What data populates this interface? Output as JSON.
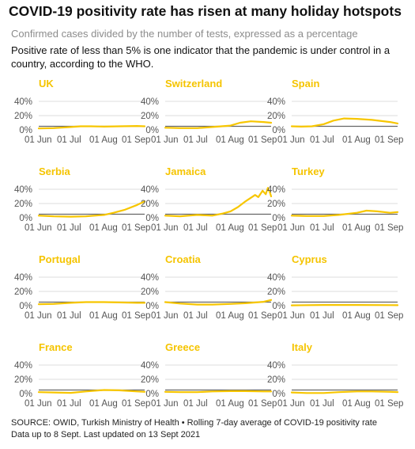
{
  "header": {
    "title": "COVID-19 positivity rate has risen at many holiday hotspots",
    "subtitle": "Confirmed cases divided by the number of tests, expressed as a percentage",
    "description": "Positive rate of less than 5% is one indicator that the pandemic is under control in a country, according to the WHO."
  },
  "footer": {
    "source": "SOURCE: OWID, Turkish Ministry of Health • Rolling 7-day average of COVID-19 positivity rate",
    "updated": "Data up to 8 Sept. Last updated on 13 Sept 2021"
  },
  "colors": {
    "series": "#f7c600",
    "threshold": "#666666",
    "grid": "#dddddd",
    "axis_text": "#555555",
    "country_label": "#f5c400"
  },
  "chart_data": [
    {
      "type": "line",
      "title": "UK",
      "x_ticks": [
        "01 Jun",
        "01 Jul",
        "01 Aug",
        "01 Sep"
      ],
      "y_ticks": [
        "0%",
        "20%",
        "40%"
      ],
      "ylim": [
        0,
        40
      ],
      "threshold": 5,
      "series": [
        {
          "x": [
            "2021-06-01",
            "2021-06-15",
            "2021-07-01",
            "2021-07-10",
            "2021-07-20",
            "2021-08-01",
            "2021-08-15",
            "2021-09-01",
            "2021-09-08"
          ],
          "y": [
            2,
            2.5,
            4,
            5,
            5,
            4.5,
            5,
            5.5,
            5
          ]
        }
      ]
    },
    {
      "type": "line",
      "title": "Switzerland",
      "x_ticks": [
        "01 Jun",
        "01 Jul",
        "01 Aug",
        "01 Sep"
      ],
      "y_ticks": [
        "0%",
        "20%",
        "40%"
      ],
      "ylim": [
        0,
        40
      ],
      "threshold": 5,
      "series": [
        {
          "x": [
            "2021-06-01",
            "2021-06-15",
            "2021-07-01",
            "2021-07-15",
            "2021-08-01",
            "2021-08-10",
            "2021-08-20",
            "2021-09-01",
            "2021-09-08"
          ],
          "y": [
            3,
            2.5,
            2.5,
            4,
            6,
            10,
            12,
            11,
            10
          ]
        }
      ]
    },
    {
      "type": "line",
      "title": "Spain",
      "x_ticks": [
        "01 Jun",
        "01 Jul",
        "01 Aug",
        "01 Sep"
      ],
      "y_ticks": [
        "0%",
        "20%",
        "40%"
      ],
      "ylim": [
        0,
        40
      ],
      "threshold": 5,
      "series": [
        {
          "x": [
            "2021-06-01",
            "2021-06-10",
            "2021-06-20",
            "2021-07-01",
            "2021-07-10",
            "2021-07-20",
            "2021-08-01",
            "2021-08-15",
            "2021-09-01",
            "2021-09-08"
          ],
          "y": [
            5,
            4.5,
            5,
            8,
            13,
            16,
            15.5,
            14,
            11,
            9
          ]
        }
      ]
    },
    {
      "type": "line",
      "title": "Serbia",
      "x_ticks": [
        "01 Jun",
        "01 Jul",
        "01 Aug",
        "01 Sep"
      ],
      "y_ticks": [
        "0%",
        "20%",
        "40%"
      ],
      "ylim": [
        0,
        40
      ],
      "threshold": 5,
      "series": [
        {
          "x": [
            "2021-06-01",
            "2021-06-15",
            "2021-07-01",
            "2021-07-15",
            "2021-08-01",
            "2021-08-10",
            "2021-08-20",
            "2021-09-01",
            "2021-09-08"
          ],
          "y": [
            3,
            2,
            1.5,
            2,
            4,
            7,
            11,
            18,
            23
          ]
        }
      ]
    },
    {
      "type": "line",
      "title": "Jamaica",
      "x_ticks": [
        "01 Jun",
        "01 Jul",
        "01 Aug",
        "01 Sep"
      ],
      "y_ticks": [
        "0%",
        "20%",
        "40%"
      ],
      "ylim": [
        0,
        40
      ],
      "threshold": 5,
      "series": [
        {
          "x": [
            "2021-06-01",
            "2021-06-15",
            "2021-07-01",
            "2021-07-15",
            "2021-07-25",
            "2021-08-01",
            "2021-08-08",
            "2021-08-15",
            "2021-08-20",
            "2021-08-24",
            "2021-08-27",
            "2021-08-31",
            "2021-09-03",
            "2021-09-05",
            "2021-09-07",
            "2021-09-08"
          ],
          "y": [
            3,
            2,
            4,
            3,
            6,
            9,
            15,
            23,
            28,
            32,
            29,
            38,
            33,
            42,
            35,
            30
          ]
        }
      ]
    },
    {
      "type": "line",
      "title": "Turkey",
      "x_ticks": [
        "01 Jun",
        "01 Jul",
        "01 Aug",
        "01 Sep"
      ],
      "y_ticks": [
        "0%",
        "20%",
        "40%"
      ],
      "ylim": [
        0,
        40
      ],
      "threshold": 5,
      "series": [
        {
          "x": [
            "2021-06-01",
            "2021-06-15",
            "2021-07-01",
            "2021-07-15",
            "2021-08-01",
            "2021-08-10",
            "2021-08-20",
            "2021-09-01",
            "2021-09-08"
          ],
          "y": [
            3,
            2.5,
            2.5,
            4,
            7,
            10,
            9,
            7,
            8
          ]
        }
      ]
    },
    {
      "type": "line",
      "title": "Portugal",
      "x_ticks": [
        "01 Jun",
        "01 Jul",
        "01 Aug",
        "01 Sep"
      ],
      "y_ticks": [
        "0%",
        "20%",
        "40%"
      ],
      "ylim": [
        0,
        40
      ],
      "threshold": 5,
      "series": [
        {
          "x": [
            "2021-06-01",
            "2021-06-15",
            "2021-07-01",
            "2021-07-15",
            "2021-08-01",
            "2021-08-15",
            "2021-09-01",
            "2021-09-08"
          ],
          "y": [
            2,
            2.5,
            4,
            5,
            5,
            4.5,
            4,
            4
          ]
        }
      ]
    },
    {
      "type": "line",
      "title": "Croatia",
      "x_ticks": [
        "01 Jun",
        "01 Jul",
        "01 Aug",
        "01 Sep"
      ],
      "y_ticks": [
        "0%",
        "20%",
        "40%"
      ],
      "ylim": [
        0,
        40
      ],
      "threshold": 5,
      "series": [
        {
          "x": [
            "2021-06-01",
            "2021-06-15",
            "2021-07-01",
            "2021-07-15",
            "2021-08-01",
            "2021-08-15",
            "2021-09-01",
            "2021-09-08"
          ],
          "y": [
            5,
            3,
            1.5,
            1.5,
            2.5,
            3.5,
            5.5,
            8
          ]
        }
      ]
    },
    {
      "type": "line",
      "title": "Cyprus",
      "x_ticks": [
        "01 Jun",
        "01 Jul",
        "01 Aug",
        "01 Sep"
      ],
      "y_ticks": [
        "0%",
        "20%",
        "40%"
      ],
      "ylim": [
        0,
        40
      ],
      "threshold": 5,
      "series": [
        {
          "x": [
            "2021-06-01",
            "2021-07-01",
            "2021-08-01",
            "2021-09-01",
            "2021-09-08"
          ],
          "y": [
            0.5,
            1,
            1,
            0.8,
            0.7
          ]
        }
      ]
    },
    {
      "type": "line",
      "title": "France",
      "x_ticks": [
        "01 Jun",
        "01 Jul",
        "01 Aug",
        "01 Sep"
      ],
      "y_ticks": [
        "0%",
        "20%",
        "40%"
      ],
      "ylim": [
        0,
        40
      ],
      "threshold": 5,
      "series": [
        {
          "x": [
            "2021-06-01",
            "2021-06-15",
            "2021-07-01",
            "2021-07-15",
            "2021-08-01",
            "2021-08-15",
            "2021-09-01",
            "2021-09-08"
          ],
          "y": [
            2,
            1.5,
            1,
            3,
            5,
            4.5,
            3,
            2.5
          ]
        }
      ]
    },
    {
      "type": "line",
      "title": "Greece",
      "x_ticks": [
        "01 Jun",
        "01 Jul",
        "01 Aug",
        "01 Sep"
      ],
      "y_ticks": [
        "0%",
        "20%",
        "40%"
      ],
      "ylim": [
        0,
        40
      ],
      "threshold": 5,
      "series": [
        {
          "x": [
            "2021-06-01",
            "2021-06-15",
            "2021-07-01",
            "2021-07-15",
            "2021-08-01",
            "2021-08-15",
            "2021-09-01",
            "2021-09-08"
          ],
          "y": [
            2.5,
            2,
            2,
            3,
            3.5,
            3.5,
            3,
            3
          ]
        }
      ]
    },
    {
      "type": "line",
      "title": "Italy",
      "x_ticks": [
        "01 Jun",
        "01 Jul",
        "01 Aug",
        "01 Sep"
      ],
      "y_ticks": [
        "0%",
        "20%",
        "40%"
      ],
      "ylim": [
        0,
        40
      ],
      "threshold": 5,
      "series": [
        {
          "x": [
            "2021-06-01",
            "2021-06-15",
            "2021-07-01",
            "2021-07-15",
            "2021-08-01",
            "2021-08-15",
            "2021-09-01",
            "2021-09-08"
          ],
          "y": [
            1.5,
            0.8,
            0.8,
            2,
            3,
            3,
            2.5,
            2
          ]
        }
      ]
    }
  ]
}
